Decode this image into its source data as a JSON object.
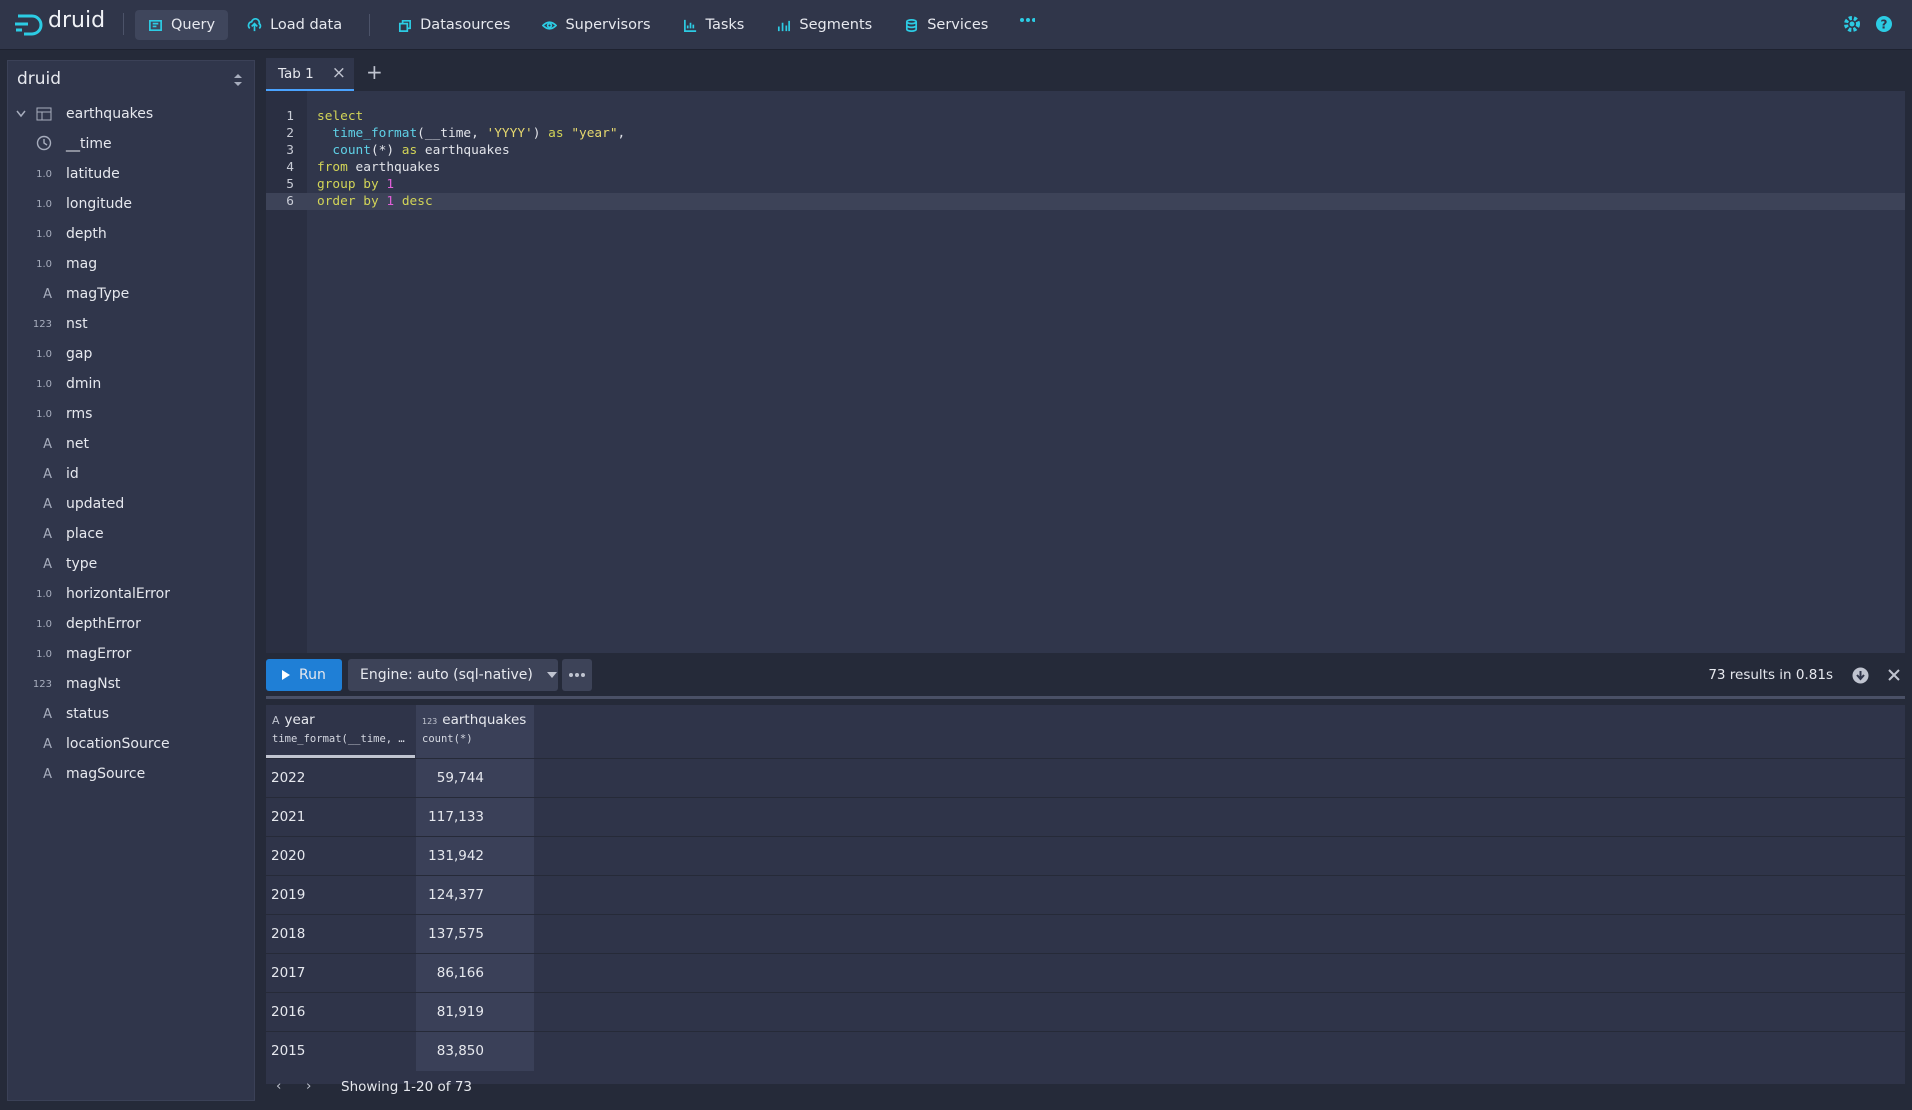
{
  "nav": {
    "brand": "druid",
    "items": [
      "Query",
      "Load data",
      "Datasources",
      "Supervisors",
      "Tasks",
      "Segments",
      "Services"
    ]
  },
  "sidebar": {
    "title": "druid",
    "table": "earthquakes",
    "columns": [
      {
        "name": "__time"
      },
      {
        "badge": "1.0",
        "name": "latitude"
      },
      {
        "badge": "1.0",
        "name": "longitude"
      },
      {
        "badge": "1.0",
        "name": "depth"
      },
      {
        "badge": "1.0",
        "name": "mag"
      },
      {
        "badge": "A",
        "name": "magType"
      },
      {
        "badge": "123",
        "name": "nst"
      },
      {
        "badge": "1.0",
        "name": "gap"
      },
      {
        "badge": "1.0",
        "name": "dmin"
      },
      {
        "badge": "1.0",
        "name": "rms"
      },
      {
        "badge": "A",
        "name": "net"
      },
      {
        "badge": "A",
        "name": "id"
      },
      {
        "badge": "A",
        "name": "updated"
      },
      {
        "badge": "A",
        "name": "place"
      },
      {
        "badge": "A",
        "name": "type"
      },
      {
        "badge": "1.0",
        "name": "horizontalError"
      },
      {
        "badge": "1.0",
        "name": "depthError"
      },
      {
        "badge": "1.0",
        "name": "magError"
      },
      {
        "badge": "123",
        "name": "magNst"
      },
      {
        "badge": "A",
        "name": "status"
      },
      {
        "badge": "A",
        "name": "locationSource"
      },
      {
        "badge": "A",
        "name": "magSource"
      }
    ]
  },
  "tab": "Tab 1",
  "editor": {
    "lines": [
      {
        "n": 1,
        "code": "select"
      },
      {
        "n": 2,
        "code": "  time_format(__time, 'YYYY') as \"year\","
      },
      {
        "n": 3,
        "code": "  count(*) as earthquakes"
      },
      {
        "n": 4,
        "code": "from earthquakes"
      },
      {
        "n": 5,
        "code": "group by 1"
      },
      {
        "n": 6,
        "code": "order by 1 desc"
      }
    ]
  },
  "toolbar": {
    "run": "Run",
    "engine": "Engine: auto (sql-native)",
    "status": "73 results in 0.81s"
  },
  "table": {
    "headers": [
      {
        "badge": "A",
        "name": "year",
        "expr": "time_format(__time, …"
      },
      {
        "badge": "123",
        "name": "earthquakes",
        "expr": "count(*)"
      }
    ],
    "rows": [
      [
        "2022",
        "59,744"
      ],
      [
        "2021",
        "117,133"
      ],
      [
        "2020",
        "131,942"
      ],
      [
        "2019",
        "124,377"
      ],
      [
        "2018",
        "137,575"
      ],
      [
        "2017",
        "86,166"
      ],
      [
        "2016",
        "81,919"
      ],
      [
        "2015",
        "83,850"
      ]
    ],
    "footer": "Showing 1-20 of 73"
  }
}
